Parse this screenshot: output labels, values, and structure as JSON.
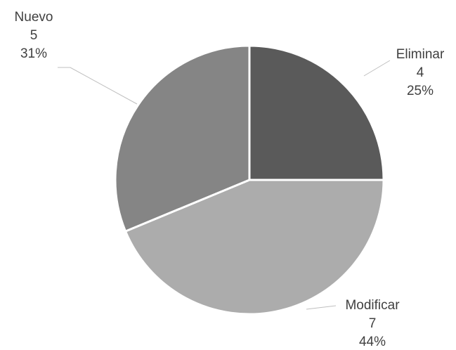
{
  "chart_data": {
    "type": "pie",
    "title": "",
    "grid": false,
    "legend": "none",
    "slices": [
      {
        "label": "Eliminar",
        "value": 4,
        "percent_label": "25%",
        "color": "#5a5a5a"
      },
      {
        "label": "Modificar",
        "value": 7,
        "percent_label": "44%",
        "color": "#acacac"
      },
      {
        "label": "Nuevo",
        "value": 5,
        "percent_label": "31%",
        "color": "#858585"
      }
    ]
  }
}
